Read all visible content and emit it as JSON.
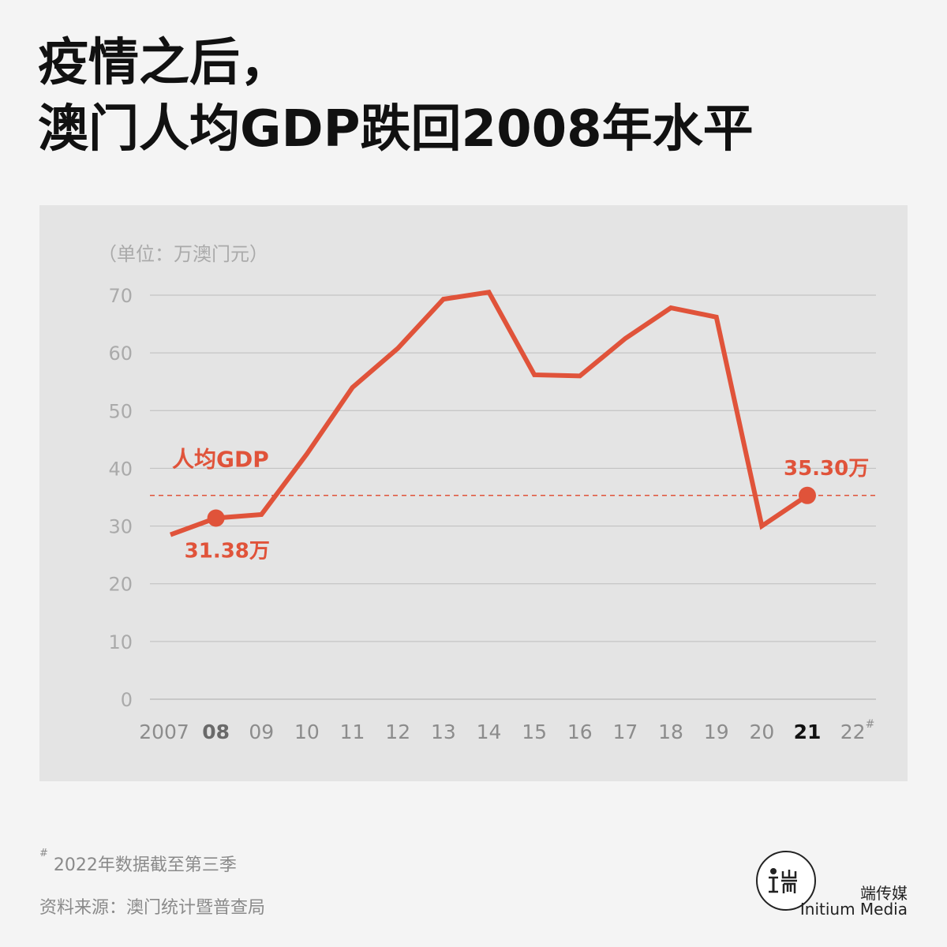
{
  "title": {
    "line1": "疫情之后，",
    "line2": "澳门人均GDP跌回2008年水平"
  },
  "unit_label": "（单位：万澳门元）",
  "footnote": {
    "marker": "#",
    "text": "2022年数据截至第三季"
  },
  "source": "资料来源：澳门统计暨普查局",
  "brand": {
    "logo_icon": "initium-logo-icon",
    "name_cn": "端传媒",
    "name_en": "Initium Media"
  },
  "colors": {
    "line": "#e0533a",
    "grid": "#bdbdbd",
    "tick": "#aaaaaa",
    "year": "#8c8c8c"
  },
  "chart_data": {
    "type": "line",
    "series": [
      {
        "name": "人均GDP",
        "x": [
          "2007",
          "08",
          "09",
          "10",
          "11",
          "12",
          "13",
          "14",
          "15",
          "16",
          "17",
          "18",
          "19",
          "20",
          "21",
          "22"
        ],
        "values": [
          28.5,
          31.38,
          32.0,
          42.5,
          54.0,
          60.8,
          69.3,
          70.5,
          56.2,
          56.0,
          62.5,
          67.8,
          66.2,
          30.0,
          35.3,
          null
        ]
      }
    ],
    "x_labels": [
      "2007",
      "08",
      "09",
      "10",
      "11",
      "12",
      "13",
      "14",
      "15",
      "16",
      "17",
      "18",
      "19",
      "20",
      "21",
      "22"
    ],
    "x_label_marker": {
      "index": 15,
      "text": "#"
    },
    "highlighted_x": [
      {
        "index": 1,
        "style": "gray-bold"
      },
      {
        "index": 14,
        "style": "black-bold"
      }
    ],
    "y_ticks": [
      0,
      10,
      20,
      30,
      40,
      50,
      60,
      70
    ],
    "ylim": [
      0,
      75
    ],
    "grid": true,
    "reference_line": {
      "value": 35.3,
      "style": "dashed"
    },
    "annotations": [
      {
        "index": 1,
        "text": "31.38万",
        "position": "below-right"
      },
      {
        "index": 14,
        "text": "35.30万",
        "position": "above"
      }
    ],
    "series_label": {
      "text": "人均GDP",
      "position": "left-above-reference"
    }
  }
}
